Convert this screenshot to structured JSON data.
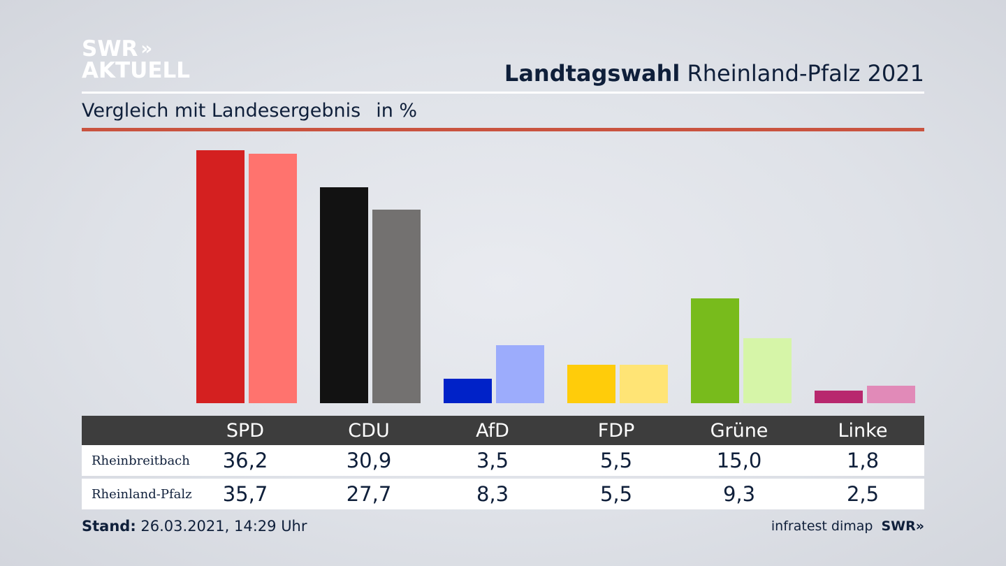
{
  "logo": {
    "line1": "SWR",
    "line2": "AKTUELL",
    "chevrons": "»"
  },
  "header": {
    "title_bold": "Landtagswahl",
    "title_rest": "Rheinland-Pfalz 2021",
    "subtitle": "Vergleich mit Landesergebnis",
    "unit": "in %"
  },
  "colors": {
    "SPD": [
      "#d42020",
      "#ff736e"
    ],
    "CDU": [
      "#121212",
      "#737170"
    ],
    "AfD": [
      "#0022c8",
      "#9cacfc"
    ],
    "FDP": [
      "#ffcc0a",
      "#ffe475"
    ],
    "Grüne": [
      "#78bb1c",
      "#d6f5a8"
    ],
    "Linke": [
      "#b8286e",
      "#e18ab8"
    ],
    "accent_rule": "#c9533f",
    "table_header": "#3d3d3d"
  },
  "chart_data": {
    "type": "bar",
    "categories": [
      "SPD",
      "CDU",
      "AfD",
      "FDP",
      "Grüne",
      "Linke"
    ],
    "series": [
      {
        "name": "Rheinbreitbach",
        "values": [
          36.2,
          30.9,
          3.5,
          5.5,
          15.0,
          1.8
        ]
      },
      {
        "name": "Rheinland-Pfalz",
        "values": [
          35.7,
          27.7,
          8.3,
          5.5,
          9.3,
          2.5
        ]
      }
    ],
    "ylim": [
      0,
      36.2
    ]
  },
  "table": {
    "headers": [
      "SPD",
      "CDU",
      "AfD",
      "FDP",
      "Grüne",
      "Linke"
    ],
    "rows": [
      {
        "label": "Rheinbreitbach",
        "values": [
          "36,2",
          "30,9",
          "3,5",
          "5,5",
          "15,0",
          "1,8"
        ]
      },
      {
        "label": "Rheinland-Pfalz",
        "values": [
          "35,7",
          "27,7",
          "8,3",
          "5,5",
          "9,3",
          "2,5"
        ]
      }
    ]
  },
  "footer": {
    "stand_label": "Stand:",
    "stand_value": "26.03.2021, 14:29 Uhr",
    "source": "infratest dimap",
    "brand": "SWR»"
  }
}
